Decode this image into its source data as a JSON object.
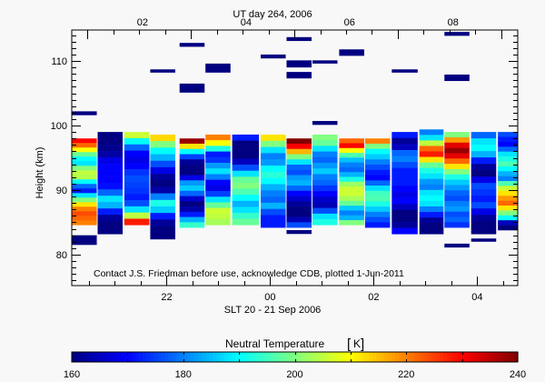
{
  "chart_data": {
    "type": "heatmap",
    "title": "UT day 264, 2006",
    "xlabel": "SLT 20 - 21 Sep 2006",
    "ylabel": "Height (km)",
    "annotation": "Contact J.S. Friedman before use, acknowledge CDB, plotted 1-Jun-2011",
    "xlim": [
      "20:10",
      "04:47"
    ],
    "ylim": [
      75.2,
      114.8
    ],
    "x_ticks": [
      {
        "label": "22",
        "time": "22:00"
      },
      {
        "label": "00",
        "time": "00:00"
      },
      {
        "label": "02",
        "time": "02:00"
      },
      {
        "label": "04",
        "time": "04:00"
      }
    ],
    "top_axis_ticks": [
      {
        "label": "02",
        "slt_time": "21:32"
      },
      {
        "label": "04",
        "slt_time": "23:32"
      },
      {
        "label": "06",
        "slt_time": "01:32"
      },
      {
        "label": "08",
        "slt_time": "03:32"
      }
    ],
    "y_ticks": [
      80,
      90,
      100,
      110
    ],
    "colorbar": {
      "label": "Neutral Temperature",
      "unit": "K",
      "range": [
        160,
        240
      ],
      "ticks": [
        "160",
        "180",
        "200",
        "220",
        "240"
      ],
      "colormap": "jet"
    },
    "columns": [
      {
        "start": "20:10",
        "end": "20:39",
        "top": 98.0,
        "bottom": 84.6,
        "temps": [
          230,
          222,
          210,
          198,
          190,
          188,
          200,
          205,
          204,
          190,
          178,
          172,
          188,
          200,
          212,
          220,
          224,
          222,
          220
        ]
      },
      {
        "start": "20:40",
        "end": "21:09",
        "top": 99.0,
        "bottom": 83.2,
        "temps": [
          160,
          160,
          161,
          163,
          168,
          170,
          170,
          170,
          171,
          178,
          188,
          184,
          172,
          162,
          160,
          160
        ]
      },
      {
        "start": "21:11",
        "end": "21:40",
        "top": 99.0,
        "bottom": 84.6,
        "temps": [
          206,
          190,
          178,
          170,
          168,
          170,
          174,
          176,
          175,
          174,
          172,
          176,
          188,
          205,
          228
        ]
      },
      {
        "start": "21:41",
        "end": "22:10",
        "top": 98.6,
        "bottom": 82.4,
        "temps": [
          213,
          200,
          190,
          184,
          176,
          168,
          162,
          160,
          163,
          180,
          192,
          186,
          172,
          162,
          160,
          160
        ]
      },
      {
        "start": "22:15",
        "end": "22:44",
        "top": 98.0,
        "bottom": 84.2,
        "temps": [
          238,
          212,
          190,
          175,
          162,
          160,
          160,
          168,
          182,
          186,
          178,
          166,
          160,
          163,
          172,
          184,
          194
        ]
      },
      {
        "start": "22:45",
        "end": "23:14",
        "top": 98.6,
        "bottom": 84.6,
        "temps": [
          220,
          210,
          192,
          172,
          174,
          182,
          188,
          180,
          170,
          168,
          175,
          188,
          198,
          206,
          205,
          203
        ]
      },
      {
        "start": "23:16",
        "end": "23:47",
        "top": 98.6,
        "bottom": 84.6,
        "temps": [
          172,
          160,
          160,
          160,
          165,
          176,
          188,
          198,
          200,
          196,
          190,
          184,
          188,
          194,
          198
        ]
      },
      {
        "start": "23:49",
        "end": "00:18",
        "top": 98.6,
        "bottom": 84.2,
        "temps": [
          212,
          200,
          188,
          180,
          182,
          190,
          193,
          190,
          184,
          180,
          178,
          184,
          176,
          172,
          172
        ]
      },
      {
        "start": "00:19",
        "end": "00:48",
        "top": 98.0,
        "bottom": 84.2,
        "temps": [
          240,
          230,
          216,
          200,
          188,
          178,
          176,
          182,
          184,
          178,
          170,
          166,
          162,
          160,
          160,
          164,
          176
        ]
      },
      {
        "start": "00:49",
        "end": "01:18",
        "top": 98.6,
        "bottom": 84.6,
        "temps": [
          200,
          198,
          188,
          180,
          178,
          182,
          186,
          180,
          178,
          174,
          170,
          166,
          164,
          176,
          188,
          192
        ]
      },
      {
        "start": "01:20",
        "end": "01:49",
        "top": 98.0,
        "bottom": 84.6,
        "temps": [
          222,
          230,
          210,
          196,
          185,
          180,
          178,
          184,
          192,
          202,
          206,
          206,
          203,
          198,
          186,
          180,
          184,
          200
        ]
      },
      {
        "start": "01:50",
        "end": "02:19",
        "top": 98.0,
        "bottom": 84.2,
        "temps": [
          220,
          200,
          190,
          186,
          180,
          176,
          172,
          170,
          178,
          188,
          195,
          196,
          192,
          186,
          180,
          176,
          172
        ]
      },
      {
        "start": "02:21",
        "end": "02:51",
        "top": 99.0,
        "bottom": 83.2,
        "temps": [
          172,
          162,
          165,
          178,
          180,
          176,
          172,
          172,
          172,
          170,
          168,
          170,
          165,
          160,
          160,
          162,
          170
        ]
      },
      {
        "start": "02:53",
        "end": "03:21",
        "top": 99.4,
        "bottom": 83.2,
        "temps": [
          180,
          188,
          205,
          222,
          228,
          212,
          198,
          192,
          188,
          182,
          180,
          188,
          190,
          188,
          180,
          172,
          162,
          160,
          160
        ]
      },
      {
        "start": "03:22",
        "end": "03:51",
        "top": 99.0,
        "bottom": 84.2,
        "temps": [
          200,
          218,
          232,
          238,
          232,
          222,
          212,
          200,
          192,
          186,
          182,
          178,
          176,
          180,
          182,
          176,
          178,
          174
        ]
      },
      {
        "start": "03:53",
        "end": "04:22",
        "top": 99.0,
        "bottom": 83.2,
        "temps": [
          178,
          188,
          190,
          184,
          172,
          162,
          160,
          168,
          176,
          174,
          172,
          176,
          168,
          162,
          160,
          160
        ]
      },
      {
        "start": "04:24",
        "end": "04:47",
        "top": 99.0,
        "bottom": 83.8,
        "temps": [
          176,
          172,
          170,
          178,
          188,
          192,
          196,
          190,
          184,
          180,
          196,
          206,
          212,
          218,
          222,
          212,
          200,
          190,
          165,
          160
        ]
      }
    ],
    "isolated_cells": [
      {
        "start": "20:10",
        "end": "20:39",
        "top": 102.2,
        "bottom": 101.6,
        "temp": 160
      },
      {
        "start": "20:10",
        "end": "20:39",
        "top": 83.0,
        "bottom": 81.5,
        "temp": 160
      },
      {
        "start": "21:41",
        "end": "22:10",
        "top": 108.7,
        "bottom": 108.2,
        "temp": 160
      },
      {
        "start": "22:15",
        "end": "22:44",
        "top": 112.8,
        "bottom": 112.2,
        "temp": 160
      },
      {
        "start": "22:15",
        "end": "22:44",
        "top": 106.5,
        "bottom": 105.1,
        "temp": 160
      },
      {
        "start": "22:45",
        "end": "23:14",
        "top": 109.6,
        "bottom": 108.2,
        "temp": 160
      },
      {
        "start": "23:49",
        "end": "00:18",
        "top": 111.0,
        "bottom": 110.4,
        "temp": 160
      },
      {
        "start": "00:19",
        "end": "00:48",
        "top": 113.7,
        "bottom": 113.1,
        "temp": 160
      },
      {
        "start": "00:19",
        "end": "00:48",
        "top": 110.1,
        "bottom": 109.0,
        "temp": 160
      },
      {
        "start": "00:19",
        "end": "00:48",
        "top": 108.3,
        "bottom": 107.3,
        "temp": 160
      },
      {
        "start": "00:19",
        "end": "00:48",
        "top": 83.8,
        "bottom": 83.2,
        "temp": 160
      },
      {
        "start": "00:49",
        "end": "01:18",
        "top": 110.1,
        "bottom": 109.6,
        "temp": 160
      },
      {
        "start": "00:49",
        "end": "01:18",
        "top": 100.7,
        "bottom": 100.1,
        "temp": 160
      },
      {
        "start": "01:20",
        "end": "01:49",
        "top": 111.8,
        "bottom": 110.8,
        "temp": 160
      },
      {
        "start": "02:21",
        "end": "02:51",
        "top": 108.7,
        "bottom": 108.2,
        "temp": 160
      },
      {
        "start": "03:22",
        "end": "03:51",
        "top": 114.5,
        "bottom": 113.9,
        "temp": 160
      },
      {
        "start": "03:22",
        "end": "03:51",
        "top": 107.9,
        "bottom": 106.9,
        "temp": 160
      },
      {
        "start": "03:22",
        "end": "03:51",
        "top": 81.7,
        "bottom": 81.1,
        "temp": 160
      },
      {
        "start": "03:53",
        "end": "04:22",
        "top": 82.5,
        "bottom": 82.0,
        "temp": 160
      }
    ],
    "grid": false
  }
}
